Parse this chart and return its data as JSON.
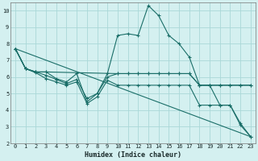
{
  "xlabel": "Humidex (Indice chaleur)",
  "bg_color": "#d4f0f0",
  "grid_color": "#aad8d8",
  "line_color": "#1a6e68",
  "xlim": [
    -0.5,
    23.5
  ],
  "ylim": [
    2,
    10.5
  ],
  "xticks": [
    0,
    1,
    2,
    3,
    4,
    5,
    6,
    7,
    8,
    9,
    10,
    11,
    12,
    13,
    14,
    15,
    16,
    17,
    18,
    19,
    20,
    21,
    22,
    23
  ],
  "yticks": [
    2,
    3,
    4,
    5,
    6,
    7,
    8,
    9,
    10
  ],
  "series": [
    {
      "x": [
        0,
        1,
        2,
        3,
        4,
        5,
        6,
        7,
        8,
        9,
        10,
        11,
        12,
        13,
        14,
        15,
        16,
        17,
        18,
        19,
        20,
        21,
        22,
        23
      ],
      "y": [
        7.7,
        6.5,
        6.3,
        6.3,
        5.9,
        5.7,
        6.2,
        4.5,
        5.0,
        6.2,
        8.5,
        8.6,
        8.5,
        10.3,
        9.7,
        8.5,
        8.0,
        7.2,
        5.5,
        5.5,
        4.3,
        4.3,
        3.1,
        2.4
      ],
      "marker": true
    },
    {
      "x": [
        0,
        1,
        2,
        3,
        10,
        11,
        12,
        13,
        14,
        15,
        16,
        17,
        18,
        19,
        20,
        21,
        22,
        23
      ],
      "y": [
        7.7,
        6.5,
        6.3,
        6.3,
        6.2,
        6.2,
        6.2,
        6.2,
        6.2,
        6.2,
        6.2,
        6.2,
        5.5,
        5.5,
        5.5,
        5.5,
        5.5,
        5.5
      ],
      "marker": true
    },
    {
      "x": [
        0,
        1,
        2,
        3,
        4,
        5,
        6,
        7,
        8,
        9,
        10,
        11,
        12,
        13,
        14,
        15,
        16,
        17,
        18,
        19,
        20,
        21,
        22,
        23
      ],
      "y": [
        7.7,
        6.5,
        6.3,
        6.1,
        5.85,
        5.6,
        5.85,
        4.7,
        5.0,
        6.0,
        6.2,
        6.2,
        6.2,
        6.2,
        6.2,
        6.2,
        6.2,
        6.2,
        5.5,
        5.5,
        5.5,
        5.5,
        5.5,
        5.5
      ],
      "marker": true
    },
    {
      "x": [
        0,
        1,
        2,
        3,
        4,
        5,
        6,
        7,
        8,
        9,
        10,
        11,
        12,
        13,
        14,
        15,
        16,
        17,
        18,
        19,
        20,
        21,
        22,
        23
      ],
      "y": [
        7.7,
        6.5,
        6.25,
        5.9,
        5.7,
        5.5,
        5.7,
        4.4,
        4.8,
        5.8,
        5.5,
        5.5,
        5.5,
        5.5,
        5.5,
        5.5,
        5.5,
        5.5,
        4.3,
        4.3,
        4.3,
        4.3,
        3.2,
        2.4
      ],
      "marker": true
    },
    {
      "x": [
        0,
        23
      ],
      "y": [
        7.7,
        2.4
      ],
      "marker": false
    }
  ]
}
